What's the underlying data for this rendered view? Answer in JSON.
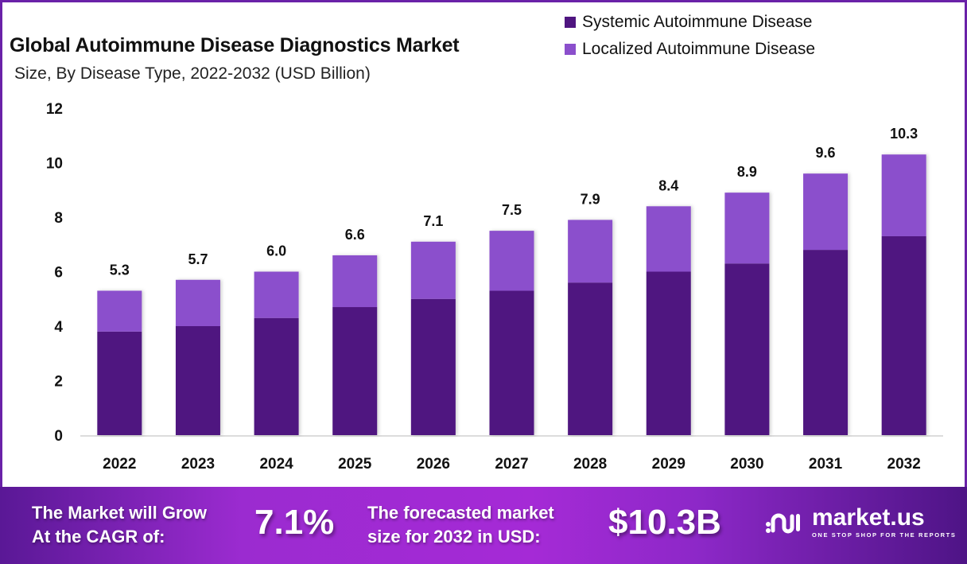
{
  "header": {
    "title": "Global Autoimmune Disease Diagnostics Market",
    "subtitle": "Size, By Disease Type, 2022-2032 (USD Billion)"
  },
  "legend": [
    {
      "label": "Systemic Autoimmune Disease",
      "color": "#4f1580"
    },
    {
      "label": "Localized Autoimmune Disease",
      "color": "#8b4fcc"
    }
  ],
  "chart_data": {
    "type": "bar",
    "stacked": true,
    "title": "Global Autoimmune Disease Diagnostics Market",
    "subtitle": "Size, By Disease Type, 2022-2032 (USD Billion)",
    "xlabel": "",
    "ylabel": "",
    "ylim": [
      0,
      12
    ],
    "yticks": [
      "0",
      "2",
      "4",
      "6",
      "8",
      "10",
      "12"
    ],
    "grid": false,
    "legend_position": "top-right",
    "categories": [
      "2022",
      "2023",
      "2024",
      "2025",
      "2026",
      "2027",
      "2028",
      "2029",
      "2030",
      "2031",
      "2032"
    ],
    "series": [
      {
        "name": "Systemic Autoimmune Disease",
        "color": "#4f1580",
        "values": [
          3.8,
          4.0,
          4.3,
          4.7,
          5.0,
          5.3,
          5.6,
          6.0,
          6.3,
          6.8,
          7.3
        ]
      },
      {
        "name": "Localized Autoimmune Disease",
        "color": "#8b4fcc",
        "values": [
          1.5,
          1.7,
          1.7,
          1.9,
          2.1,
          2.2,
          2.3,
          2.4,
          2.6,
          2.8,
          3.0
        ]
      }
    ],
    "totals": [
      5.3,
      5.7,
      6.0,
      6.6,
      7.1,
      7.5,
      7.9,
      8.4,
      8.9,
      9.6,
      10.3
    ],
    "total_labels": [
      "5.3",
      "5.7",
      "6.0",
      "6.6",
      "7.1",
      "7.5",
      "7.9",
      "8.4",
      "8.9",
      "9.6",
      "10.3"
    ]
  },
  "banner": {
    "cagr_text_line1": "The Market will Grow",
    "cagr_text_line2": "At the CAGR of:",
    "cagr_value": "7.1%",
    "forecast_text_line1": "The forecasted market",
    "forecast_text_line2": "size for 2032 in USD:",
    "forecast_value": "$10.3B",
    "brand_name": "market.us",
    "brand_tagline": "ONE STOP SHOP FOR THE REPORTS",
    "brand_icon": "market-us-logo-icon"
  }
}
